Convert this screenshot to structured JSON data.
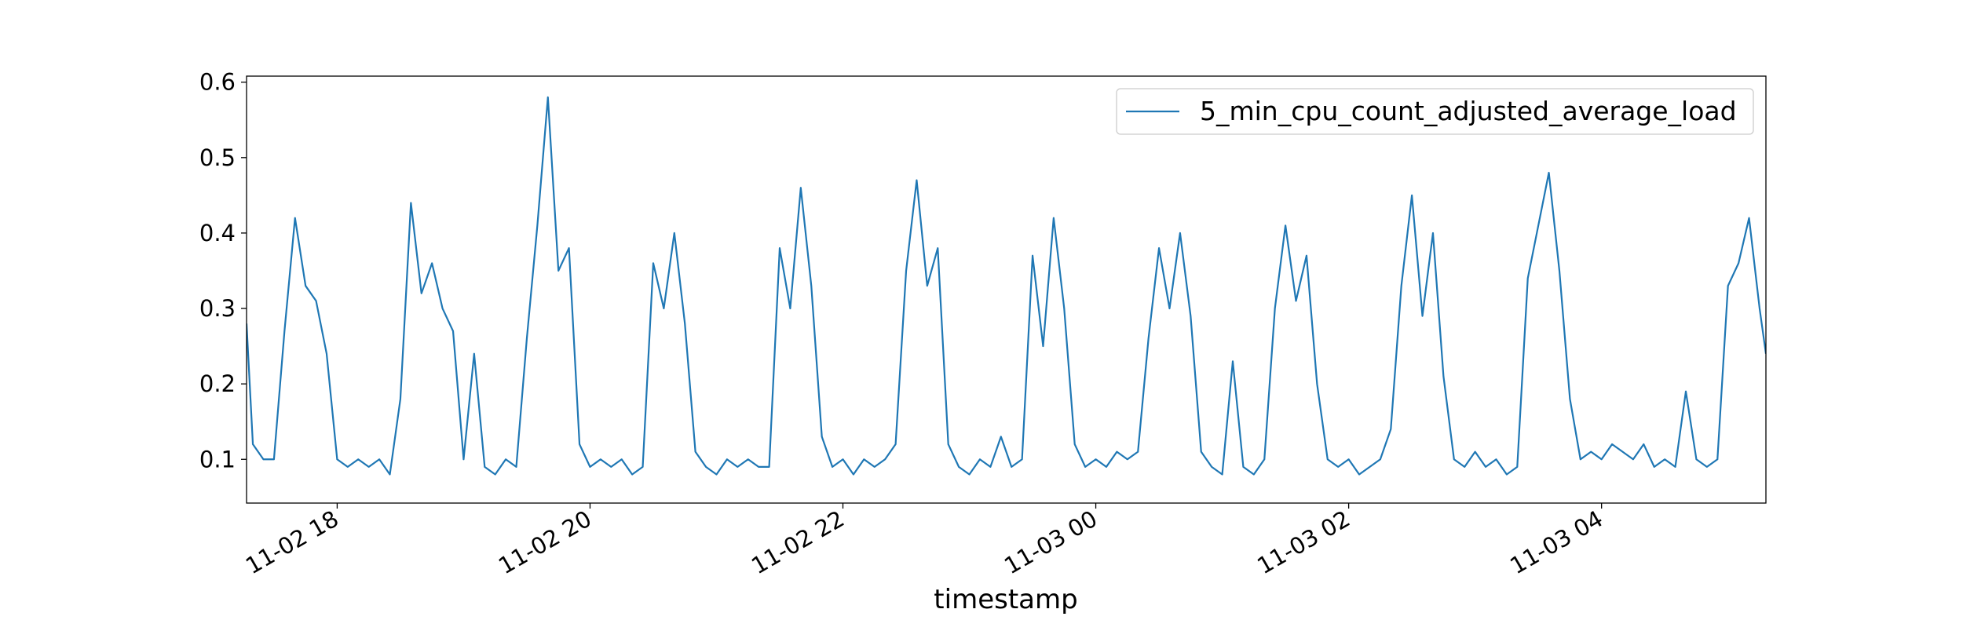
{
  "chart_data": {
    "type": "line",
    "xlabel": "timestamp",
    "legend": "upper right",
    "grid": false,
    "xlim": [
      "11-02 17:17",
      "11-03 05:18"
    ],
    "xticks": [
      "11-02 18",
      "11-02 20",
      "11-02 22",
      "11-03 00",
      "11-03 02",
      "11-03 04"
    ],
    "ylim": [
      0.042,
      0.608
    ],
    "yticks": [
      0.1,
      0.2,
      0.3,
      0.4,
      0.5,
      0.6
    ],
    "x": [
      "11-02 17:17",
      "11-02 17:20",
      "11-02 17:25",
      "11-02 17:30",
      "11-02 17:35",
      "11-02 17:40",
      "11-02 17:45",
      "11-02 17:50",
      "11-02 17:55",
      "11-02 18:00",
      "11-02 18:05",
      "11-02 18:10",
      "11-02 18:15",
      "11-02 18:20",
      "11-02 18:25",
      "11-02 18:30",
      "11-02 18:35",
      "11-02 18:40",
      "11-02 18:45",
      "11-02 18:50",
      "11-02 18:55",
      "11-02 19:00",
      "11-02 19:05",
      "11-02 19:10",
      "11-02 19:15",
      "11-02 19:20",
      "11-02 19:25",
      "11-02 19:30",
      "11-02 19:35",
      "11-02 19:40",
      "11-02 19:45",
      "11-02 19:50",
      "11-02 19:55",
      "11-02 20:00",
      "11-02 20:05",
      "11-02 20:10",
      "11-02 20:15",
      "11-02 20:20",
      "11-02 20:25",
      "11-02 20:30",
      "11-02 20:35",
      "11-02 20:40",
      "11-02 20:45",
      "11-02 20:50",
      "11-02 20:55",
      "11-02 21:00",
      "11-02 21:05",
      "11-02 21:10",
      "11-02 21:15",
      "11-02 21:20",
      "11-02 21:25",
      "11-02 21:30",
      "11-02 21:35",
      "11-02 21:40",
      "11-02 21:45",
      "11-02 21:50",
      "11-02 21:55",
      "11-02 22:00",
      "11-02 22:05",
      "11-02 22:10",
      "11-02 22:15",
      "11-02 22:20",
      "11-02 22:25",
      "11-02 22:30",
      "11-02 22:35",
      "11-02 22:40",
      "11-02 22:45",
      "11-02 22:50",
      "11-02 22:55",
      "11-02 23:00",
      "11-02 23:05",
      "11-02 23:10",
      "11-02 23:15",
      "11-02 23:20",
      "11-02 23:25",
      "11-02 23:30",
      "11-02 23:35",
      "11-02 23:40",
      "11-02 23:45",
      "11-02 23:50",
      "11-02 23:55",
      "11-03 00:00",
      "11-03 00:05",
      "11-03 00:10",
      "11-03 00:15",
      "11-03 00:20",
      "11-03 00:25",
      "11-03 00:30",
      "11-03 00:35",
      "11-03 00:40",
      "11-03 00:45",
      "11-03 00:50",
      "11-03 00:55",
      "11-03 01:00",
      "11-03 01:05",
      "11-03 01:10",
      "11-03 01:15",
      "11-03 01:20",
      "11-03 01:25",
      "11-03 01:30",
      "11-03 01:35",
      "11-03 01:40",
      "11-03 01:45",
      "11-03 01:50",
      "11-03 01:55",
      "11-03 02:00",
      "11-03 02:05",
      "11-03 02:10",
      "11-03 02:15",
      "11-03 02:20",
      "11-03 02:25",
      "11-03 02:30",
      "11-03 02:35",
      "11-03 02:40",
      "11-03 02:45",
      "11-03 02:50",
      "11-03 02:55",
      "11-03 03:00",
      "11-03 03:05",
      "11-03 03:10",
      "11-03 03:15",
      "11-03 03:20",
      "11-03 03:25",
      "11-03 03:30",
      "11-03 03:35",
      "11-03 03:40",
      "11-03 03:45",
      "11-03 03:50",
      "11-03 03:55",
      "11-03 04:00",
      "11-03 04:05",
      "11-03 04:10",
      "11-03 04:15",
      "11-03 04:20",
      "11-03 04:25",
      "11-03 04:30",
      "11-03 04:35",
      "11-03 04:40",
      "11-03 04:45",
      "11-03 04:50",
      "11-03 04:55",
      "11-03 05:00",
      "11-03 05:05",
      "11-03 05:10",
      "11-03 05:15",
      "11-03 05:18"
    ],
    "series": [
      {
        "name": "5_min_cpu_count_adjusted_average_load",
        "color": "#1f77b4",
        "values": [
          0.28,
          0.12,
          0.1,
          0.1,
          0.27,
          0.42,
          0.33,
          0.31,
          0.24,
          0.1,
          0.09,
          0.1,
          0.09,
          0.1,
          0.08,
          0.18,
          0.44,
          0.32,
          0.36,
          0.3,
          0.27,
          0.1,
          0.24,
          0.09,
          0.08,
          0.1,
          0.09,
          0.26,
          0.41,
          0.58,
          0.35,
          0.38,
          0.12,
          0.09,
          0.1,
          0.09,
          0.1,
          0.08,
          0.09,
          0.36,
          0.3,
          0.4,
          0.28,
          0.11,
          0.09,
          0.08,
          0.1,
          0.09,
          0.1,
          0.09,
          0.09,
          0.38,
          0.3,
          0.46,
          0.33,
          0.13,
          0.09,
          0.1,
          0.08,
          0.1,
          0.09,
          0.1,
          0.12,
          0.35,
          0.47,
          0.33,
          0.38,
          0.12,
          0.09,
          0.08,
          0.1,
          0.09,
          0.13,
          0.09,
          0.1,
          0.37,
          0.25,
          0.42,
          0.3,
          0.12,
          0.09,
          0.1,
          0.09,
          0.11,
          0.1,
          0.11,
          0.26,
          0.38,
          0.3,
          0.4,
          0.29,
          0.11,
          0.09,
          0.08,
          0.23,
          0.09,
          0.08,
          0.1,
          0.3,
          0.41,
          0.31,
          0.37,
          0.2,
          0.1,
          0.09,
          0.1,
          0.08,
          0.09,
          0.1,
          0.14,
          0.33,
          0.45,
          0.29,
          0.4,
          0.21,
          0.1,
          0.09,
          0.11,
          0.09,
          0.1,
          0.08,
          0.09,
          0.34,
          0.41,
          0.48,
          0.35,
          0.18,
          0.1,
          0.11,
          0.1,
          0.12,
          0.11,
          0.1,
          0.12,
          0.09,
          0.1,
          0.09,
          0.19,
          0.1,
          0.09,
          0.1,
          0.33,
          0.36,
          0.42,
          0.3,
          0.24
        ]
      }
    ]
  }
}
